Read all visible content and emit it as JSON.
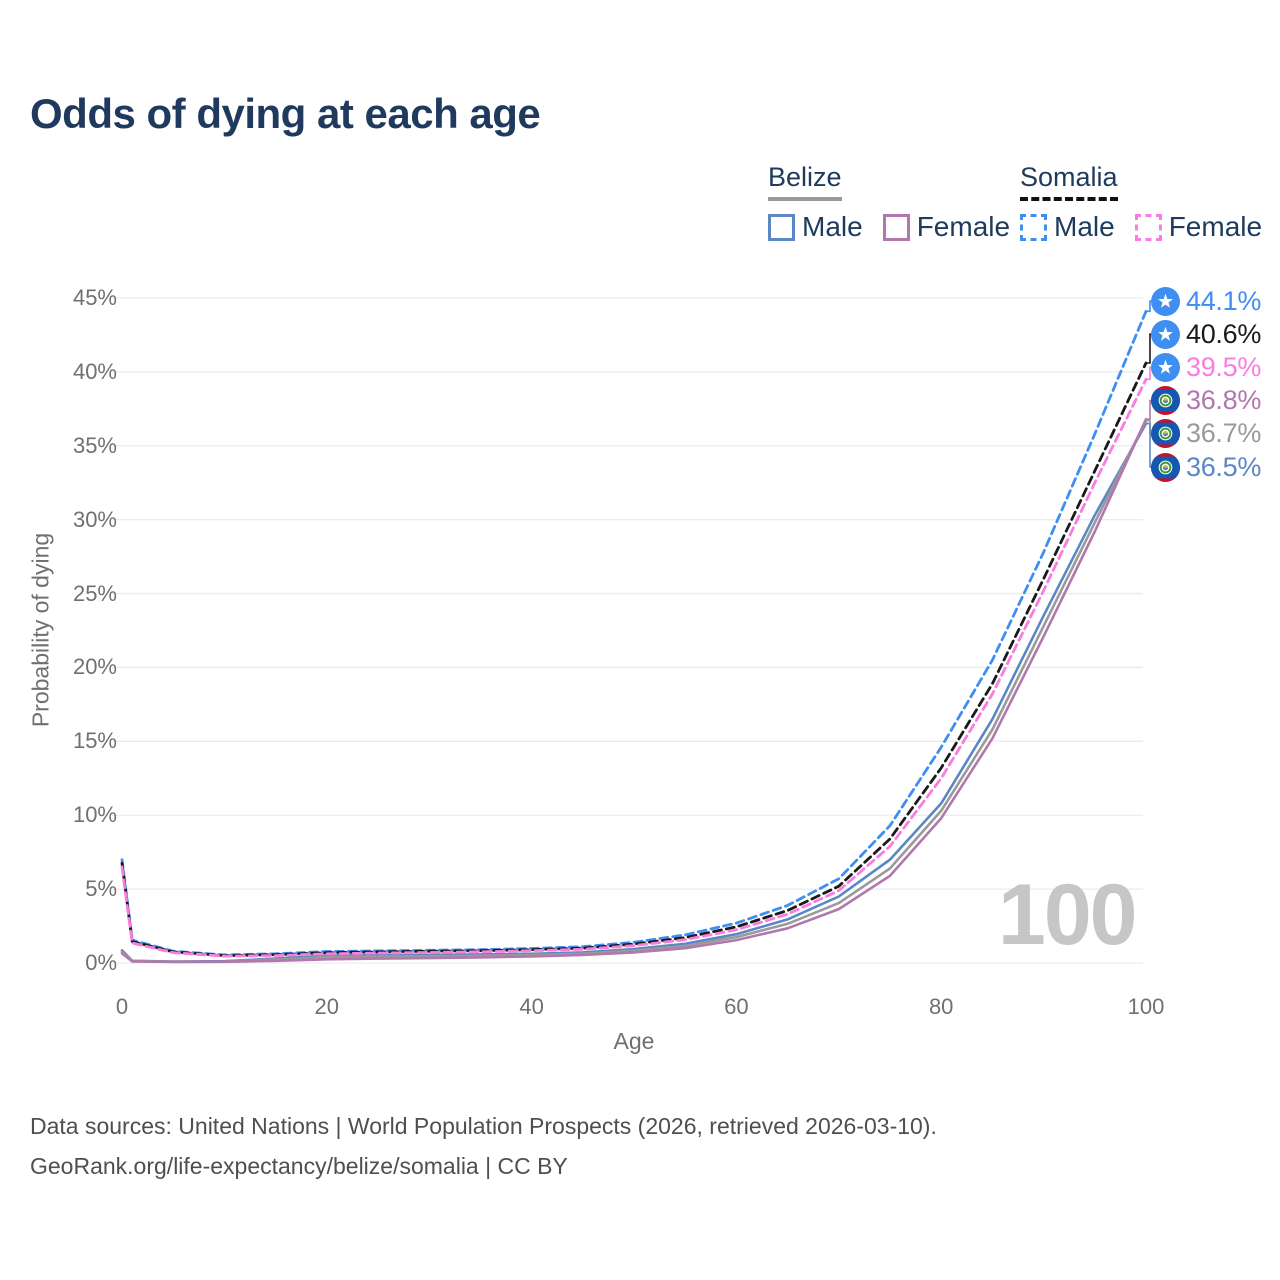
{
  "title": "Odds of dying at each age",
  "legend": {
    "groups": [
      {
        "id": "belize",
        "country": "Belize",
        "underline_style": "solid",
        "underline_color": "#9a9a9a",
        "items": [
          {
            "label": "Male",
            "color": "#5b87c5",
            "dashed": false
          },
          {
            "label": "Female",
            "color": "#b078ad",
            "dashed": false
          }
        ]
      },
      {
        "id": "somalia",
        "country": "Somalia",
        "underline_style": "dashed",
        "underline_color": "#111111",
        "items": [
          {
            "label": "Male",
            "color": "#3f8ef2",
            "dashed": true
          },
          {
            "label": "Female",
            "color": "#fb7ce0",
            "dashed": true
          }
        ]
      }
    ]
  },
  "chart_data": {
    "type": "line",
    "title": "Odds of dying at each age",
    "xlabel": "Age",
    "ylabel": "Probability of dying",
    "watermark": "100",
    "xlim": [
      0,
      100
    ],
    "ylim": [
      0,
      45
    ],
    "grid": "horizontal",
    "x_ticks": [
      0,
      20,
      40,
      60,
      80,
      100
    ],
    "y_ticks": [
      "0%",
      "5%",
      "10%",
      "15%",
      "20%",
      "25%",
      "30%",
      "35%",
      "40%",
      "45%"
    ],
    "ages": [
      0,
      1,
      5,
      10,
      15,
      20,
      25,
      30,
      35,
      40,
      45,
      50,
      55,
      60,
      65,
      70,
      75,
      80,
      85,
      90,
      95,
      100
    ],
    "series": [
      {
        "name": "Belize Male",
        "country": "belize",
        "sex": "male",
        "color": "#5b87c5",
        "dashed": false,
        "flag": "belize",
        "end_label": "36.5%",
        "label_color": "#5b87c5",
        "values": [
          0.85,
          0.15,
          0.1,
          0.12,
          0.3,
          0.5,
          0.55,
          0.55,
          0.58,
          0.62,
          0.72,
          0.95,
          1.3,
          1.95,
          2.95,
          4.5,
          7.0,
          10.8,
          16.5,
          23.5,
          30.3,
          36.5
        ]
      },
      {
        "name": "Belize Both sexes",
        "country": "belize",
        "sex": "both",
        "color": "#9a9a9a",
        "dashed": false,
        "flag": "belize",
        "end_label": "36.7%",
        "label_color": "#9a9a9a",
        "values": [
          0.75,
          0.13,
          0.09,
          0.1,
          0.24,
          0.4,
          0.45,
          0.46,
          0.49,
          0.54,
          0.63,
          0.84,
          1.16,
          1.75,
          2.65,
          4.05,
          6.4,
          10.3,
          15.8,
          22.8,
          29.8,
          36.7
        ]
      },
      {
        "name": "Belize Female",
        "country": "belize",
        "sex": "female",
        "color": "#b078ad",
        "dashed": false,
        "flag": "belize",
        "end_label": "36.8%",
        "label_color": "#b078ad",
        "values": [
          0.65,
          0.11,
          0.07,
          0.08,
          0.15,
          0.25,
          0.3,
          0.33,
          0.38,
          0.45,
          0.55,
          0.72,
          1.0,
          1.55,
          2.35,
          3.65,
          5.9,
          9.8,
          15.2,
          22.1,
          29.2,
          36.8
        ]
      },
      {
        "name": "Somalia Male",
        "country": "somalia",
        "sex": "male",
        "color": "#3f8ef2",
        "dashed": true,
        "flag": "somalia",
        "end_label": "44.1%",
        "label_color": "#3f8ef2",
        "values": [
          7.0,
          1.55,
          0.8,
          0.55,
          0.62,
          0.78,
          0.82,
          0.86,
          0.9,
          0.98,
          1.1,
          1.4,
          1.9,
          2.7,
          3.9,
          5.7,
          9.3,
          14.6,
          20.5,
          27.8,
          35.8,
          44.1
        ]
      },
      {
        "name": "Somalia Both sexes",
        "country": "somalia",
        "sex": "both",
        "color": "#1a1a1a",
        "dashed": true,
        "flag": "somalia",
        "end_label": "40.6%",
        "label_color": "#1a1a1a",
        "values": [
          6.75,
          1.45,
          0.75,
          0.5,
          0.56,
          0.7,
          0.75,
          0.79,
          0.83,
          0.9,
          1.0,
          1.28,
          1.72,
          2.45,
          3.55,
          5.2,
          8.4,
          13.2,
          18.9,
          26.0,
          33.3,
          40.6
        ]
      },
      {
        "name": "Somalia Female",
        "country": "somalia",
        "sex": "female",
        "color": "#fb7ce0",
        "dashed": true,
        "flag": "somalia",
        "end_label": "39.5%",
        "label_color": "#fb7ce0",
        "values": [
          6.5,
          1.35,
          0.7,
          0.47,
          0.5,
          0.62,
          0.67,
          0.71,
          0.76,
          0.83,
          0.93,
          1.18,
          1.58,
          2.25,
          3.3,
          4.9,
          7.9,
          12.5,
          18.2,
          25.2,
          32.5,
          39.5
        ]
      }
    ]
  },
  "footer": {
    "line1": "Data sources: United Nations | World Population Prospects (2026, retrieved 2026-03-10).",
    "line2": "GeoRank.org/life-expectancy/belize/somalia | CC BY"
  }
}
